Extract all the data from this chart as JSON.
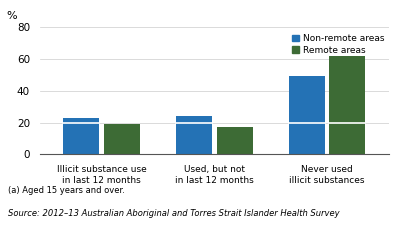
{
  "categories": [
    "Illicit substance use\nin last 12 months",
    "Used, but not\nin last 12 months",
    "Never used\nillicit substances"
  ],
  "non_remote_values": [
    23,
    24,
    49
  ],
  "non_remote_white_line": [
    20,
    20,
    20
  ],
  "remote_values": [
    19,
    17,
    62
  ],
  "remote_white_line": [
    0,
    0,
    20
  ],
  "non_remote_color": "#2472b5",
  "remote_color": "#3d6b35",
  "ylabel": "%",
  "ylim": [
    0,
    80
  ],
  "yticks": [
    0,
    20,
    40,
    60,
    80
  ],
  "legend_labels": [
    "Non-remote areas",
    "Remote areas"
  ],
  "footnote": "(a) Aged 15 years and over.",
  "source": "Source: 2012–13 Australian Aboriginal and Torres Strait Islander Health Survey",
  "bar_width": 0.32
}
